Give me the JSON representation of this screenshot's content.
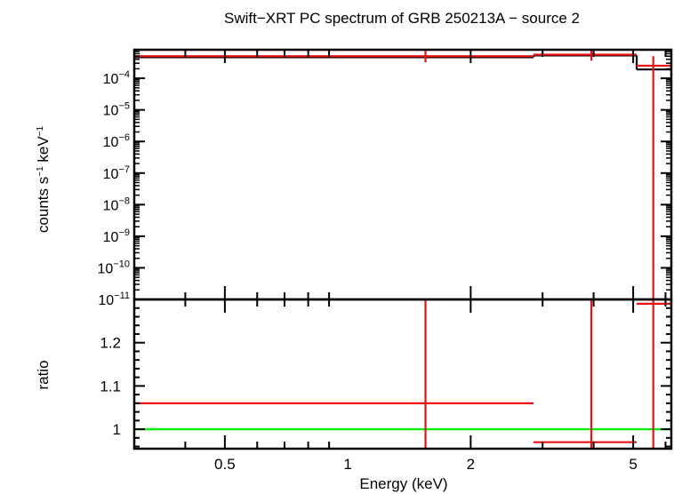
{
  "chart_data": {
    "type": "scatter",
    "title": "Swift−XRT PC spectrum of GRB 250213A − source 2",
    "xlabel": "Energy (keV)",
    "xscale": "log",
    "xlim": [
      0.3,
      6.2
    ],
    "x_ticks": [
      0.5,
      1,
      2,
      5
    ],
    "x_tick_labels": [
      "0.5",
      "1",
      "2",
      "5"
    ],
    "upper_panel": {
      "ylabel_main": "counts s",
      "ylabel_sup1": "−1",
      "ylabel_mid": " keV",
      "ylabel_sup2": "−1",
      "yscale": "log",
      "ylim": [
        1e-11,
        0.0008
      ],
      "y_tick_labels": [
        {
          "value": 0.0001,
          "base": "10",
          "exp": "−4"
        },
        {
          "value": 1e-05,
          "base": "10",
          "exp": "−5"
        },
        {
          "value": 1e-06,
          "base": "10",
          "exp": "−6"
        },
        {
          "value": 1e-07,
          "base": "10",
          "exp": "−7"
        },
        {
          "value": 1e-08,
          "base": "10",
          "exp": "−8"
        },
        {
          "value": 1e-09,
          "base": "10",
          "exp": "−9"
        },
        {
          "value": 1e-10,
          "base": "10",
          "exp": "−10"
        },
        {
          "value": 1e-11,
          "base": "10",
          "exp": "−11"
        }
      ],
      "data": [
        {
          "x": 1.55,
          "xlo": 0.3,
          "xhi": 2.85,
          "y": 0.0005,
          "ylo": 0.00032,
          "yhi": 0.00075
        },
        {
          "x": 3.95,
          "xlo": 2.85,
          "xhi": 5.1,
          "y": 0.00056,
          "ylo": 0.00036,
          "yhi": 0.0008
        },
        {
          "x": 5.6,
          "xlo": 5.1,
          "xhi": 6.2,
          "y": 0.00025,
          "ylo": 1e-11,
          "yhi": 0.0005
        }
      ],
      "model": [
        {
          "xlo": 0.3,
          "xhi": 2.85,
          "y": 0.000465
        },
        {
          "xlo": 2.85,
          "xhi": 5.1,
          "y": 0.00053
        },
        {
          "xlo": 5.1,
          "xhi": 6.2,
          "y": 0.00019
        }
      ]
    },
    "lower_panel": {
      "ylabel": "ratio",
      "yscale": "linear",
      "ylim": [
        0.955,
        1.3
      ],
      "y_ticks": [
        1,
        1.1,
        1.2
      ],
      "y_tick_labels": [
        "1",
        "1.1",
        "1.2"
      ],
      "reference_line": 1.0,
      "data": [
        {
          "x": 1.55,
          "xlo": 0.3,
          "xhi": 2.85,
          "y": 1.06,
          "ylo": 0.94,
          "yhi": 1.31
        },
        {
          "x": 3.95,
          "xlo": 2.85,
          "xhi": 5.1,
          "y": 0.97,
          "ylo": 0.94,
          "yhi": 1.31
        },
        {
          "x": 5.6,
          "xlo": 5.1,
          "xhi": 6.2,
          "y": 1.29,
          "ylo": 0.94,
          "yhi": 1.31
        }
      ]
    },
    "colors": {
      "data": "#ee1111",
      "model": "#000000",
      "reference": "#11ee11",
      "axes": "#000000"
    }
  }
}
